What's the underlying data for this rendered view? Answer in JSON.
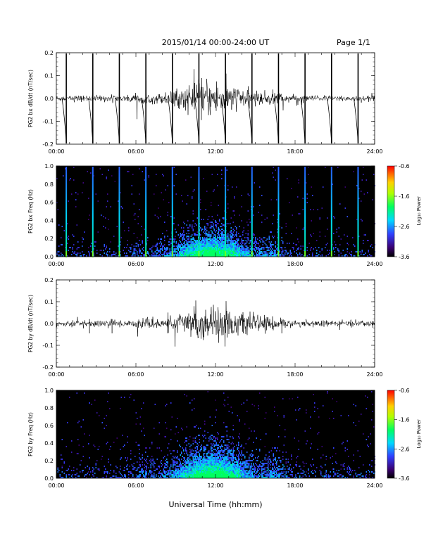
{
  "header": {
    "title": "2015/01/14  00:00-24:00 UT",
    "page": "Page 1/1"
  },
  "xlabel": "Universal Time (hh:mm)",
  "xticks": [
    "00:00",
    "06:00",
    "12:00",
    "18:00",
    "24:00"
  ],
  "colorbar": {
    "label": "Log₁₀ Power",
    "ticks": [
      "-0.6",
      "-1.6",
      "-2.6",
      "-3.6"
    ]
  },
  "chart_data": [
    {
      "type": "line",
      "ylabel": "PG2 bx dB/dt (nT/sec)",
      "xlim": [
        0,
        24
      ],
      "ylim": [
        -0.2,
        0.2
      ],
      "yticks": [
        "0.2",
        "0.1",
        "0.0",
        "-0.1",
        "-0.2"
      ],
      "spikes_hours": [
        0.75,
        2.75,
        4.75,
        6.75,
        8.75,
        10.75,
        12.75,
        14.75,
        16.75,
        18.75,
        20.75,
        22.75
      ],
      "activity_peak_hours": [
        10.5,
        13.5
      ],
      "baseline": 0.0
    },
    {
      "type": "heatmap",
      "ylabel": "PG2 bx Freq (Hz)",
      "xlim": [
        0,
        24
      ],
      "ylim": [
        0.0,
        1.0
      ],
      "yticks": [
        "1.0",
        "0.8",
        "0.6",
        "0.4",
        "0.2",
        "0.0"
      ],
      "colorbar_range": [
        -3.6,
        -0.6
      ]
    },
    {
      "type": "line",
      "ylabel": "PG2 by dB/dt (nT/sec)",
      "xlim": [
        0,
        24
      ],
      "ylim": [
        -0.2,
        0.2
      ],
      "yticks": [
        "0.2",
        "0.1",
        "0.0",
        "-0.1",
        "-0.2"
      ],
      "activity_peak_hours": [
        10.5,
        13.5
      ],
      "baseline": 0.0
    },
    {
      "type": "heatmap",
      "ylabel": "PG2 by Freq (Hz)",
      "xlim": [
        0,
        24
      ],
      "ylim": [
        0.0,
        1.0
      ],
      "yticks": [
        "1.0",
        "0.8",
        "0.6",
        "0.4",
        "0.2",
        "0.0"
      ],
      "colorbar_range": [
        -3.6,
        -0.6
      ]
    }
  ]
}
